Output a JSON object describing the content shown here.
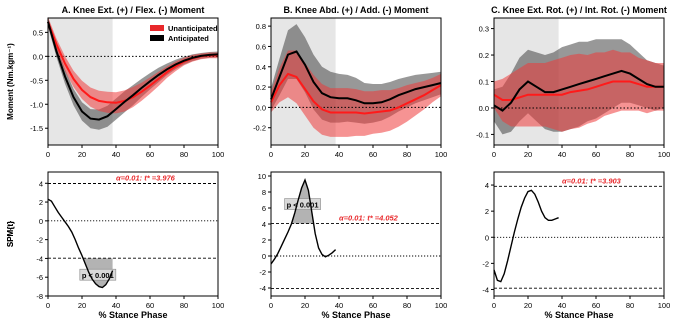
{
  "figure": {
    "xlabel": "% Stance Phase",
    "legend": [
      {
        "name": "Unanticipated",
        "color": "#e8282b"
      },
      {
        "name": "Anticipated",
        "color": "#000000"
      }
    ]
  },
  "chart_data": [
    {
      "type": "line",
      "title": "A. Knee Ext. (+) / Flex. (-) Moment",
      "ylabel": "Moment (Nm.kgm⁻¹)",
      "xlim": [
        0,
        100
      ],
      "ylim": [
        -1.85,
        0.8
      ],
      "yticks": [
        0.5,
        0,
        -0.5,
        -1.0,
        -1.5
      ],
      "ytick_labels": [
        "0.5",
        "0.0",
        "-0.5",
        "-1.0",
        "-1.5"
      ],
      "xticks": [
        0,
        20,
        40,
        60,
        80,
        100
      ],
      "grid": false,
      "shaded_region": [
        0,
        38
      ],
      "legend_position": "top-right",
      "series": [
        {
          "name": "Unanticipated",
          "color": "#e8282b",
          "x": [
            0,
            5,
            10,
            15,
            20,
            25,
            30,
            35,
            40,
            45,
            50,
            55,
            60,
            65,
            70,
            75,
            80,
            85,
            90,
            95,
            100
          ],
          "mean": [
            0.72,
            0.25,
            -0.15,
            -0.47,
            -0.7,
            -0.85,
            -0.93,
            -0.96,
            -0.97,
            -0.93,
            -0.85,
            -0.74,
            -0.61,
            -0.47,
            -0.33,
            -0.21,
            -0.11,
            -0.04,
            0.0,
            0.02,
            0.02
          ],
          "sd": [
            0.1,
            0.12,
            0.15,
            0.17,
            0.19,
            0.2,
            0.21,
            0.22,
            0.22,
            0.22,
            0.21,
            0.19,
            0.17,
            0.15,
            0.12,
            0.1,
            0.08,
            0.07,
            0.06,
            0.06,
            0.06
          ]
        },
        {
          "name": "Anticipated",
          "color": "#000000",
          "x": [
            0,
            5,
            10,
            15,
            20,
            25,
            30,
            35,
            40,
            45,
            50,
            55,
            60,
            65,
            70,
            75,
            80,
            85,
            90,
            95,
            100
          ],
          "mean": [
            0.72,
            0.1,
            -0.42,
            -0.85,
            -1.15,
            -1.3,
            -1.32,
            -1.25,
            -1.1,
            -0.95,
            -0.81,
            -0.66,
            -0.52,
            -0.39,
            -0.27,
            -0.17,
            -0.09,
            -0.03,
            0.01,
            0.03,
            0.04
          ],
          "sd": [
            0.1,
            0.12,
            0.15,
            0.17,
            0.19,
            0.2,
            0.21,
            0.22,
            0.22,
            0.22,
            0.21,
            0.19,
            0.17,
            0.15,
            0.12,
            0.1,
            0.08,
            0.07,
            0.06,
            0.06,
            0.06
          ]
        }
      ]
    },
    {
      "type": "line",
      "title": "B. Knee Abd. (+) / Add. (-) Moment",
      "ylabel": "",
      "xlim": [
        0,
        100
      ],
      "ylim": [
        -0.37,
        0.88
      ],
      "yticks": [
        0.8,
        0.6,
        0.4,
        0.2,
        0,
        -0.2
      ],
      "ytick_labels": [
        "0.8",
        "0.6",
        "0.4",
        "0.2",
        "0.0",
        "-0.2"
      ],
      "xticks": [
        0,
        20,
        40,
        60,
        80,
        100
      ],
      "grid": false,
      "shaded_region": [
        0,
        38
      ],
      "series": [
        {
          "name": "Unanticipated",
          "color": "#e8282b",
          "x": [
            0,
            5,
            10,
            15,
            20,
            25,
            30,
            35,
            40,
            45,
            50,
            55,
            60,
            65,
            70,
            75,
            80,
            85,
            90,
            95,
            100
          ],
          "mean": [
            0.05,
            0.22,
            0.33,
            0.3,
            0.18,
            0.06,
            -0.02,
            -0.05,
            -0.05,
            -0.05,
            -0.05,
            -0.06,
            -0.05,
            -0.04,
            -0.03,
            0.0,
            0.04,
            0.08,
            0.12,
            0.17,
            0.22
          ],
          "sd": [
            0.1,
            0.17,
            0.23,
            0.26,
            0.26,
            0.26,
            0.25,
            0.24,
            0.24,
            0.24,
            0.23,
            0.22,
            0.21,
            0.21,
            0.2,
            0.19,
            0.18,
            0.16,
            0.14,
            0.12,
            0.11
          ]
        },
        {
          "name": "Anticipated",
          "color": "#000000",
          "x": [
            0,
            5,
            10,
            15,
            20,
            25,
            30,
            35,
            40,
            45,
            50,
            55,
            60,
            65,
            70,
            75,
            80,
            85,
            90,
            95,
            100
          ],
          "mean": [
            0.08,
            0.3,
            0.52,
            0.55,
            0.42,
            0.25,
            0.14,
            0.1,
            0.09,
            0.09,
            0.07,
            0.04,
            0.04,
            0.05,
            0.08,
            0.12,
            0.15,
            0.18,
            0.2,
            0.22,
            0.24
          ],
          "sd": [
            0.11,
            0.18,
            0.24,
            0.27,
            0.27,
            0.27,
            0.26,
            0.25,
            0.24,
            0.23,
            0.22,
            0.2,
            0.19,
            0.18,
            0.17,
            0.16,
            0.15,
            0.14,
            0.13,
            0.12,
            0.11
          ]
        }
      ]
    },
    {
      "type": "line",
      "title": "C. Knee Ext. Rot. (+) / Int. Rot. (-) Moment",
      "ylabel": "",
      "xlim": [
        0,
        100
      ],
      "ylim": [
        -0.14,
        0.34
      ],
      "yticks": [
        0.3,
        0.2,
        0.1,
        0,
        -0.1
      ],
      "ytick_labels": [
        "0.3",
        "0.2",
        "0.1",
        "0.0",
        "-0.1"
      ],
      "xticks": [
        0,
        20,
        40,
        60,
        80,
        100
      ],
      "grid": false,
      "shaded_region": [
        0,
        38
      ],
      "series": [
        {
          "name": "Unanticipated",
          "color": "#e8282b",
          "x": [
            0,
            5,
            10,
            15,
            20,
            25,
            30,
            35,
            40,
            45,
            50,
            55,
            60,
            65,
            70,
            75,
            80,
            85,
            90,
            95,
            100
          ],
          "mean": [
            0.05,
            0.03,
            0.03,
            0.04,
            0.05,
            0.05,
            0.05,
            0.05,
            0.05,
            0.06,
            0.065,
            0.07,
            0.08,
            0.09,
            0.1,
            0.1,
            0.1,
            0.09,
            0.08,
            0.08,
            0.08
          ],
          "sd": [
            0.05,
            0.08,
            0.1,
            0.11,
            0.12,
            0.12,
            0.12,
            0.13,
            0.14,
            0.14,
            0.14,
            0.13,
            0.13,
            0.12,
            0.12,
            0.11,
            0.11,
            0.1,
            0.1,
            0.09,
            0.09
          ]
        },
        {
          "name": "Anticipated",
          "color": "#000000",
          "x": [
            0,
            5,
            10,
            15,
            20,
            25,
            30,
            35,
            40,
            45,
            50,
            55,
            60,
            65,
            70,
            75,
            80,
            85,
            90,
            95,
            100
          ],
          "mean": [
            0.01,
            -0.01,
            0.02,
            0.07,
            0.1,
            0.08,
            0.06,
            0.06,
            0.07,
            0.08,
            0.09,
            0.1,
            0.11,
            0.12,
            0.13,
            0.14,
            0.13,
            0.11,
            0.09,
            0.08,
            0.08
          ],
          "sd": [
            0.06,
            0.09,
            0.11,
            0.12,
            0.12,
            0.13,
            0.14,
            0.15,
            0.16,
            0.16,
            0.16,
            0.15,
            0.15,
            0.14,
            0.13,
            0.12,
            0.11,
            0.1,
            0.09,
            0.09,
            0.08
          ]
        }
      ]
    },
    {
      "type": "line",
      "title": "",
      "ylabel": "SPM{t}",
      "xlim": [
        0,
        100
      ],
      "ylim": [
        -8,
        5.2
      ],
      "yticks": [
        4,
        2,
        0,
        -2,
        -4,
        -6,
        -8
      ],
      "ytick_labels": [
        "4",
        "2",
        "0",
        "-2",
        "-4",
        "-6",
        "-8"
      ],
      "xticks": [
        0,
        20,
        40,
        60,
        80,
        100
      ],
      "threshold": 3.976,
      "threshold_label": "α=0.01:  t* =3.976",
      "threshold_label_side": "upper",
      "cluster_label": "p < 0.001",
      "cluster_fill_side": "below",
      "series": [
        {
          "name": "SPM{t}",
          "color": "#000000",
          "x": [
            0,
            2,
            4,
            6,
            8,
            10,
            12,
            14,
            16,
            18,
            20,
            22,
            24,
            26,
            28,
            30,
            32,
            34,
            36,
            38
          ],
          "values": [
            2.3,
            2.1,
            1.5,
            0.9,
            0.4,
            -0.1,
            -0.6,
            -1.2,
            -2.0,
            -2.9,
            -3.7,
            -4.6,
            -5.5,
            -6.2,
            -6.7,
            -7.0,
            -7.1,
            -6.8,
            -6.2,
            -5.3
          ]
        }
      ]
    },
    {
      "type": "line",
      "title": "",
      "ylabel": "",
      "xlim": [
        0,
        100
      ],
      "ylim": [
        -5,
        10.5
      ],
      "yticks": [
        10,
        8,
        6,
        4,
        2,
        0,
        -2,
        -4
      ],
      "ytick_labels": [
        "10",
        "8",
        "6",
        "4",
        "2",
        "0",
        "-2",
        "-4"
      ],
      "xticks": [
        0,
        20,
        40,
        60,
        80,
        100
      ],
      "threshold": 4.052,
      "threshold_label": "α=0.01:  t* =4.052",
      "threshold_label_side": "upper",
      "cluster_label": "p < 0.001",
      "cluster_fill_side": "above",
      "series": [
        {
          "name": "SPM{t}",
          "color": "#000000",
          "x": [
            0,
            2,
            4,
            6,
            8,
            10,
            12,
            14,
            16,
            18,
            20,
            22,
            24,
            26,
            28,
            30,
            32,
            34,
            36,
            38
          ],
          "values": [
            -1.0,
            -0.4,
            0.3,
            1.2,
            2.1,
            3.0,
            4.0,
            5.4,
            7.0,
            8.5,
            9.5,
            8.2,
            5.5,
            2.8,
            1.0,
            0.2,
            -0.1,
            0.1,
            0.4,
            0.8
          ]
        }
      ]
    },
    {
      "type": "line",
      "title": "",
      "ylabel": "SPM{t}",
      "xlim": [
        0,
        100
      ],
      "ylim": [
        -4.5,
        5
      ],
      "yticks": [
        4,
        2,
        0,
        -2,
        -4
      ],
      "ytick_labels": [
        "4",
        "2",
        "0",
        "-2",
        "-4"
      ],
      "xticks": [
        0,
        20,
        40,
        60,
        80,
        100
      ],
      "threshold": 3.903,
      "threshold_label": "α=0.01:  t* =3.903",
      "threshold_label_side": "upper",
      "series": [
        {
          "name": "SPM{t}",
          "color": "#000000",
          "x": [
            0,
            2,
            4,
            6,
            8,
            10,
            12,
            14,
            16,
            18,
            20,
            22,
            24,
            26,
            28,
            30,
            32,
            34,
            36,
            38
          ],
          "values": [
            -2.5,
            -3.3,
            -3.4,
            -2.8,
            -1.8,
            -0.7,
            0.4,
            1.4,
            2.3,
            3.0,
            3.5,
            3.6,
            3.3,
            2.7,
            2.0,
            1.5,
            1.3,
            1.3,
            1.4,
            1.5
          ]
        }
      ]
    }
  ]
}
